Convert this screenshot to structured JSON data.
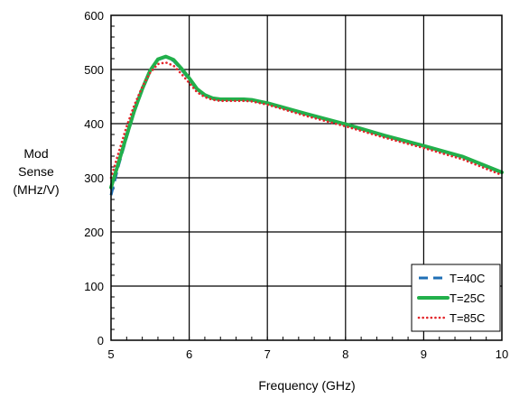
{
  "chart_data": {
    "type": "line",
    "title": "",
    "xlabel": "Frequency (GHz)",
    "ylabel_lines": [
      "Mod",
      "Sense",
      "(MHz/V)"
    ],
    "xlim": [
      5,
      10
    ],
    "ylim": [
      0,
      600
    ],
    "x_ticks": [
      5,
      6,
      7,
      8,
      9,
      10
    ],
    "y_ticks": [
      0,
      100,
      200,
      300,
      400,
      500,
      600
    ],
    "grid": true,
    "legend_position": "bottom-right",
    "series": [
      {
        "name": "T=40C",
        "color": "#1f6fb5",
        "style": "dashed",
        "x": [
          5.0,
          5.1,
          5.2,
          5.3,
          5.4,
          5.5,
          5.6,
          5.7,
          5.8,
          5.9,
          6.0,
          6.1,
          6.2,
          6.3,
          6.4,
          6.5,
          6.6,
          6.7,
          6.8,
          6.9,
          7.0,
          7.5,
          8.0,
          8.5,
          9.0,
          9.5,
          10.0
        ],
        "values": [
          268,
          325,
          375,
          423,
          462,
          497,
          518,
          523,
          516,
          500,
          482,
          462,
          452,
          446,
          444,
          444,
          444,
          444,
          443,
          440,
          437,
          417,
          398,
          377,
          358,
          338,
          309
        ]
      },
      {
        "name": "T=25C",
        "color": "#22b04b",
        "style": "solid",
        "x": [
          5.0,
          5.1,
          5.2,
          5.3,
          5.4,
          5.5,
          5.6,
          5.7,
          5.8,
          5.9,
          6.0,
          6.1,
          6.2,
          6.3,
          6.4,
          6.5,
          6.6,
          6.7,
          6.8,
          6.9,
          7.0,
          7.5,
          8.0,
          8.5,
          9.0,
          9.5,
          10.0
        ],
        "values": [
          282,
          330,
          378,
          425,
          464,
          498,
          519,
          524,
          518,
          502,
          484,
          464,
          453,
          447,
          445,
          445,
          445,
          445,
          444,
          441,
          438,
          418,
          399,
          378,
          359,
          339,
          310
        ]
      },
      {
        "name": "T=85C",
        "color": "#e3262b",
        "style": "dotted",
        "x": [
          5.0,
          5.1,
          5.2,
          5.3,
          5.4,
          5.5,
          5.6,
          5.7,
          5.8,
          5.9,
          6.0,
          6.1,
          6.2,
          6.3,
          6.4,
          6.5,
          6.6,
          6.7,
          6.8,
          6.9,
          7.0,
          7.5,
          8.0,
          8.5,
          9.0,
          9.5,
          10.0
        ],
        "values": [
          300,
          348,
          395,
          435,
          468,
          494,
          510,
          513,
          507,
          492,
          475,
          458,
          449,
          444,
          442,
          442,
          442,
          442,
          441,
          438,
          435,
          414,
          395,
          374,
          355,
          334,
          305
        ]
      }
    ]
  }
}
